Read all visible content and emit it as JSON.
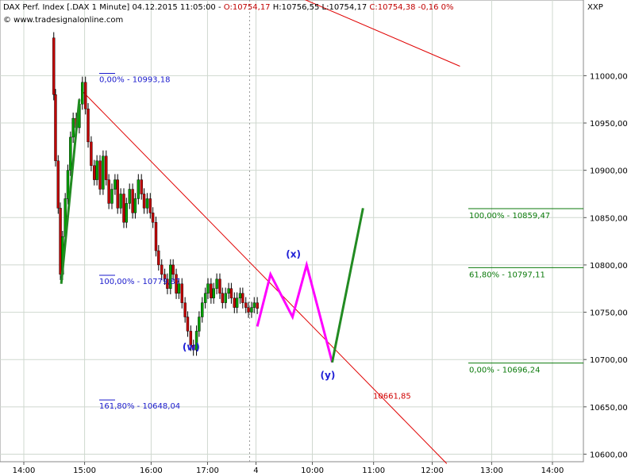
{
  "header": {
    "instrument": "DAX Perf. Index [.DAX  1 Minute] 04.12.2015 11:05:00 -",
    "open": "O:10754,17",
    "high": "H:10756,55",
    "low": "L:10754,17",
    "close": "C:10754,38 -0,16 0%",
    "url": "© www.tradesignalonline.com",
    "symbol": "XXP"
  },
  "colors": {
    "grid": "#cfd8cf",
    "trendline": "#e00000",
    "bull_candle": "#00a000",
    "bear_candle": "#c00000",
    "wick": "#000000",
    "projection": "#ff00ff",
    "final_leg": "#228B22",
    "fib_blue": "#1a1acc",
    "fib_green": "#0b7a0b",
    "target_red": "#d00000"
  },
  "chart_data": {
    "type": "candlestick",
    "ylim": [
      10592,
      11080
    ],
    "y_ticks": [
      11000,
      10950,
      10900,
      10850,
      10800,
      10750,
      10700,
      10650,
      10600
    ],
    "y_tick_labels": [
      "11000,00",
      "10950,00",
      "10900,00",
      "10850,00",
      "10800,00",
      "10750,00",
      "10700,00",
      "10650,00",
      "10600,00"
    ],
    "x_ticks": [
      {
        "label": "14:00",
        "v": 0
      },
      {
        "label": "15:00",
        "v": 0.138
      },
      {
        "label": "16:00",
        "v": 0.289
      },
      {
        "label": "17:00",
        "v": 0.417
      },
      {
        "label": "4",
        "v": 0.527
      },
      {
        "label": "10:00",
        "v": 0.655
      },
      {
        "label": "11:00",
        "v": 0.794
      },
      {
        "label": "12:00",
        "v": 0.927
      },
      {
        "label": "13:00",
        "v": 1.062
      },
      {
        "label": "14:00",
        "v": 1.2
      }
    ],
    "x_tick_note": "Horizontal axis in sessions: v is the fraction of the chart span, labels are the printed times.",
    "price_path": [
      [
        0.065,
        11040
      ],
      [
        0.068,
        10980
      ],
      [
        0.072,
        10910
      ],
      [
        0.078,
        10860
      ],
      [
        0.083,
        10790
      ],
      [
        0.088,
        10830
      ],
      [
        0.094,
        10870
      ],
      [
        0.1,
        10900
      ],
      [
        0.106,
        10935
      ],
      [
        0.112,
        10955
      ],
      [
        0.119,
        10945
      ],
      [
        0.126,
        10970
      ],
      [
        0.133,
        10993
      ],
      [
        0.14,
        10965
      ],
      [
        0.146,
        10930
      ],
      [
        0.153,
        10905
      ],
      [
        0.16,
        10890
      ],
      [
        0.166,
        10910
      ],
      [
        0.173,
        10880
      ],
      [
        0.18,
        10915
      ],
      [
        0.187,
        10890
      ],
      [
        0.193,
        10865
      ],
      [
        0.2,
        10880
      ],
      [
        0.207,
        10890
      ],
      [
        0.213,
        10860
      ],
      [
        0.22,
        10875
      ],
      [
        0.227,
        10845
      ],
      [
        0.233,
        10865
      ],
      [
        0.24,
        10880
      ],
      [
        0.247,
        10855
      ],
      [
        0.253,
        10870
      ],
      [
        0.26,
        10890
      ],
      [
        0.267,
        10875
      ],
      [
        0.273,
        10860
      ],
      [
        0.28,
        10870
      ],
      [
        0.287,
        10855
      ],
      [
        0.293,
        10845
      ],
      [
        0.3,
        10815
      ],
      [
        0.306,
        10800
      ],
      [
        0.313,
        10790
      ],
      [
        0.32,
        10785
      ],
      [
        0.326,
        10775
      ],
      [
        0.333,
        10800
      ],
      [
        0.339,
        10790
      ],
      [
        0.346,
        10770
      ],
      [
        0.352,
        10780
      ],
      [
        0.359,
        10760
      ],
      [
        0.366,
        10745
      ],
      [
        0.372,
        10730
      ],
      [
        0.379,
        10715
      ],
      [
        0.385,
        10710
      ],
      [
        0.392,
        10730
      ],
      [
        0.398,
        10745
      ],
      [
        0.405,
        10760
      ],
      [
        0.412,
        10770
      ],
      [
        0.418,
        10780
      ],
      [
        0.425,
        10765
      ],
      [
        0.431,
        10775
      ],
      [
        0.438,
        10785
      ],
      [
        0.445,
        10770
      ],
      [
        0.451,
        10760
      ],
      [
        0.458,
        10770
      ],
      [
        0.465,
        10775
      ],
      [
        0.471,
        10765
      ],
      [
        0.478,
        10755
      ],
      [
        0.484,
        10765
      ],
      [
        0.491,
        10770
      ],
      [
        0.497,
        10760
      ],
      [
        0.504,
        10755
      ],
      [
        0.51,
        10750
      ],
      [
        0.517,
        10755
      ],
      [
        0.523,
        10760
      ],
      [
        0.53,
        10754
      ]
    ],
    "trendlines": [
      {
        "name": "upper",
        "from": [
          0.54,
          11100
        ],
        "to": [
          0.99,
          11010
        ]
      },
      {
        "name": "lower",
        "from": [
          0.13,
          10985
        ],
        "to": [
          0.96,
          10590
        ]
      }
    ],
    "impulse_leg": {
      "from": [
        0.085,
        10780
      ],
      "to": [
        0.126,
        10975
      ]
    },
    "projection_path": [
      [
        0.53,
        10735
      ],
      [
        0.56,
        10790
      ],
      [
        0.61,
        10745
      ],
      [
        0.642,
        10800
      ],
      [
        0.7,
        10697
      ]
    ],
    "final_leg": {
      "from": [
        0.7,
        10697
      ],
      "to": [
        0.77,
        10860
      ]
    },
    "wave_labels": [
      {
        "text": "(w)",
        "at": [
          0.38,
          10710
        ]
      },
      {
        "text": "(x)",
        "at": [
          0.612,
          10808
        ]
      },
      {
        "text": "(y)",
        "at": [
          0.69,
          10680
        ]
      }
    ],
    "fib_levels": [
      {
        "text": "0,00% - 10993,18",
        "value": 10993.18,
        "group": "blue"
      },
      {
        "text": "100,00% - 10779,87",
        "value": 10779.87,
        "group": "blue"
      },
      {
        "text": "161,80% - 10648,04",
        "value": 10648.04,
        "group": "blue"
      },
      {
        "text": "100,00% - 10859,47",
        "value": 10859.47,
        "group": "green"
      },
      {
        "text": "61,80% - 10797,11",
        "value": 10797.11,
        "group": "green"
      },
      {
        "text": "0,00% - 10696,24",
        "value": 10696.24,
        "group": "green"
      }
    ],
    "target_label": {
      "text": "10661,85",
      "value": 10661.85
    }
  }
}
